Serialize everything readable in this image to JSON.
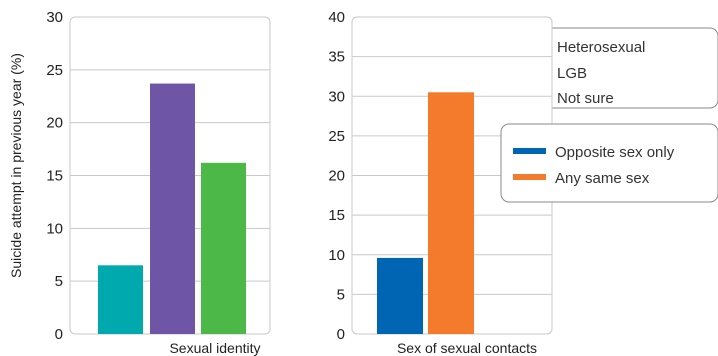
{
  "chart_data": [
    {
      "type": "bar",
      "xlabel": "Sexual identity",
      "ylabel": "Suicide attempt in previous year (%)",
      "ylim": [
        0,
        30
      ],
      "yticks": [
        0,
        5,
        10,
        15,
        20,
        25,
        30
      ],
      "grid": true,
      "bars": [
        {
          "name": "Heterosexual",
          "value": 6.5,
          "color": "#00a9ad"
        },
        {
          "name": "LGB",
          "value": 23.7,
          "color": "#6e55a5"
        },
        {
          "name": "Not sure",
          "value": 16.2,
          "color": "#4cb847"
        }
      ],
      "legend": {
        "position": "top-right",
        "items": [
          {
            "label": "Heterosexual",
            "color": "#00a9ad"
          },
          {
            "label": "LGB",
            "color": "#6e55a5"
          },
          {
            "label": "Not sure",
            "color": "#4cb847"
          }
        ]
      }
    },
    {
      "type": "bar",
      "xlabel": "Sex of sexual contacts",
      "ylabel": "",
      "ylim": [
        0,
        40
      ],
      "yticks": [
        0,
        5,
        10,
        15,
        20,
        25,
        30,
        35,
        40
      ],
      "grid": true,
      "bars": [
        {
          "name": "Opposite sex only",
          "value": 9.6,
          "color": "#0066b3"
        },
        {
          "name": "Any same sex",
          "value": 30.5,
          "color": "#f47a2c"
        }
      ],
      "legend": {
        "position": "right",
        "items": [
          {
            "label": "Opposite sex only",
            "color": "#0066b3"
          },
          {
            "label": "Any same sex",
            "color": "#f47a2c"
          }
        ]
      }
    }
  ]
}
